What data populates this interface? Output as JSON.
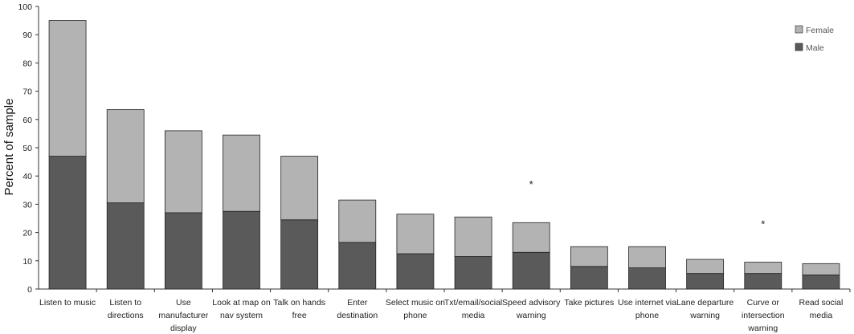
{
  "colors": {
    "female": "#b3b3b3",
    "male": "#5a5a5a",
    "axis": "#333333",
    "bar_stroke": "#222222"
  },
  "chart_data": {
    "type": "bar",
    "stacked": true,
    "ylabel": "Percent of sample",
    "xlabel": "",
    "ylim": [
      0,
      100
    ],
    "yticks": [
      0,
      10,
      20,
      30,
      40,
      50,
      60,
      70,
      80,
      90,
      100
    ],
    "grid": false,
    "legend_position": "top-right",
    "categories": [
      [
        "Listen to music"
      ],
      [
        "Listen to",
        "directions"
      ],
      [
        "Use",
        "manufacturer",
        "display"
      ],
      [
        "Look at map on",
        "nav system"
      ],
      [
        "Talk on hands",
        "free"
      ],
      [
        "Enter",
        "destination"
      ],
      [
        "Select music on",
        "phone"
      ],
      [
        "Txt/email/social",
        "media"
      ],
      [
        "Speed advisory",
        "warning"
      ],
      [
        "Take pictures"
      ],
      [
        "Use internet via",
        "phone"
      ],
      [
        "Lane departure",
        "warning"
      ],
      [
        "Curve or",
        "intersection",
        "warning"
      ],
      [
        "Read social",
        "media"
      ]
    ],
    "series": [
      {
        "name": "Male",
        "values": [
          47,
          30.5,
          27,
          27.5,
          24.5,
          16.5,
          12.5,
          11.5,
          13,
          8,
          7.5,
          5.5,
          5.5,
          5
        ]
      },
      {
        "name": "Female",
        "values": [
          48,
          33,
          29,
          27,
          22.5,
          15,
          14,
          14,
          10.5,
          7,
          7.5,
          5,
          4,
          4
        ]
      }
    ],
    "legend": [
      "Female",
      "Male"
    ],
    "annotations": [
      {
        "text": "*",
        "category_index": 8,
        "y": 38
      },
      {
        "text": "*",
        "category_index": 12,
        "y": 24
      }
    ]
  }
}
